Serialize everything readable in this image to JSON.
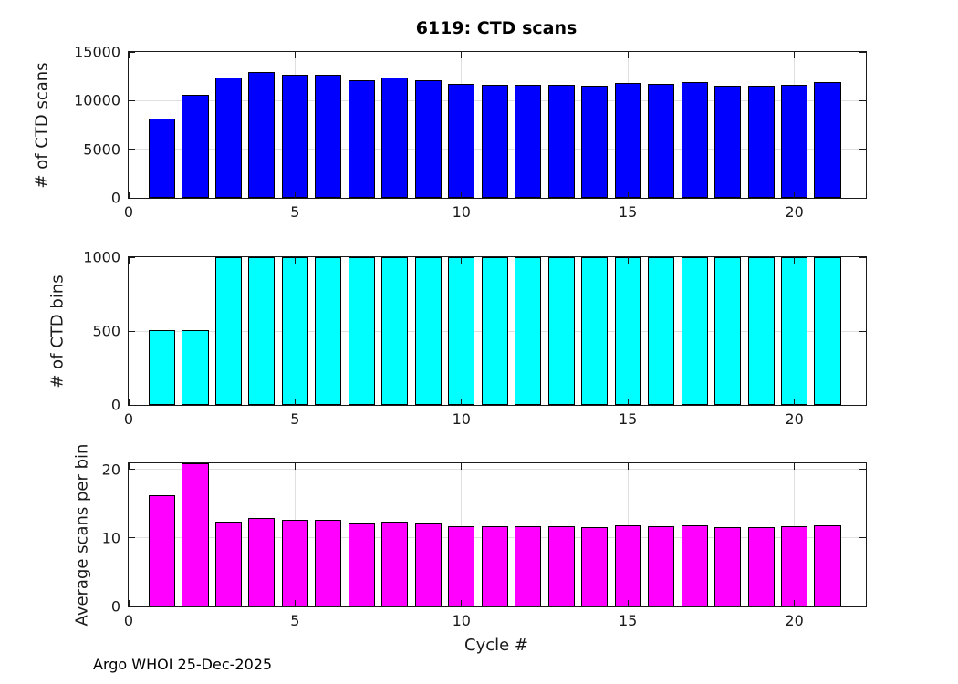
{
  "figure": {
    "title": "6119: CTD scans",
    "xlabel": "Cycle #",
    "footer": "Argo WHOI 25-Dec-2025",
    "background_color": "#FFFFFF",
    "axes_color": "#1A1A1A",
    "grid_color": "#E0E0E0"
  },
  "chart_data": [
    {
      "type": "bar",
      "title": "6119: CTD scans",
      "ylabel": "# of CTD scans",
      "xlabel": "",
      "categories": [
        1,
        2,
        3,
        4,
        5,
        6,
        7,
        8,
        9,
        10,
        11,
        12,
        13,
        14,
        15,
        16,
        17,
        18,
        19,
        20,
        21
      ],
      "values": [
        8200,
        10550,
        12350,
        12900,
        12650,
        12650,
        12100,
        12400,
        12100,
        11750,
        11650,
        11650,
        11650,
        11550,
        11850,
        11700,
        11900,
        11550,
        11550,
        11650,
        11900
      ],
      "ylim": [
        0,
        15000
      ],
      "yticks": [
        0,
        5000,
        10000,
        15000
      ],
      "xlim": [
        0,
        22.15
      ],
      "xticks": [
        0,
        5,
        10,
        15,
        20
      ],
      "bar_color": "#0000FF",
      "edge_color": "#000000",
      "bar_width": 0.8,
      "grid": true,
      "legend": null
    },
    {
      "type": "bar",
      "title": "",
      "ylabel": "# of CTD bins",
      "xlabel": "",
      "categories": [
        1,
        2,
        3,
        4,
        5,
        6,
        7,
        8,
        9,
        10,
        11,
        12,
        13,
        14,
        15,
        16,
        17,
        18,
        19,
        20,
        21
      ],
      "values": [
        505,
        505,
        1000,
        1000,
        1000,
        1000,
        1000,
        1000,
        1000,
        1000,
        1000,
        1000,
        1000,
        1000,
        1000,
        1000,
        1000,
        1000,
        1000,
        1000,
        1000
      ],
      "ylim": [
        0,
        1000
      ],
      "yticks": [
        0,
        500,
        1000
      ],
      "xlim": [
        0,
        22.15
      ],
      "xticks": [
        0,
        5,
        10,
        15,
        20
      ],
      "bar_color": "#00FFFF",
      "edge_color": "#000000",
      "bar_width": 0.8,
      "grid": true,
      "legend": null
    },
    {
      "type": "bar",
      "title": "",
      "ylabel": "Average scans per bin",
      "xlabel": "Cycle #",
      "categories": [
        1,
        2,
        3,
        4,
        5,
        6,
        7,
        8,
        9,
        10,
        11,
        12,
        13,
        14,
        15,
        16,
        17,
        18,
        19,
        20,
        21
      ],
      "values": [
        16.2,
        20.9,
        12.35,
        12.9,
        12.65,
        12.65,
        12.1,
        12.4,
        12.1,
        11.75,
        11.65,
        11.65,
        11.65,
        11.55,
        11.85,
        11.7,
        11.9,
        11.55,
        11.55,
        11.65,
        11.9
      ],
      "ylim": [
        0,
        20.9
      ],
      "yticks": [
        0,
        10,
        20
      ],
      "xlim": [
        0,
        22.15
      ],
      "xticks": [
        0,
        5,
        10,
        15,
        20
      ],
      "bar_color": "#FF00FF",
      "edge_color": "#000000",
      "bar_width": 0.8,
      "grid": true,
      "legend": null
    }
  ]
}
